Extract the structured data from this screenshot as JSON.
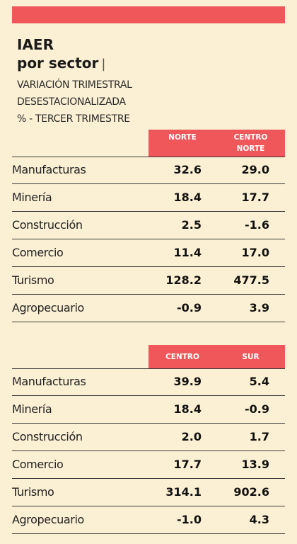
{
  "title": {
    "line1": "IAER",
    "line2": "por sector",
    "separator": "|"
  },
  "subtitle": {
    "line1": "VARIACIÓN TRIMESTRAL",
    "line2": "DESESTACIONALIZADA",
    "line3": "% - TERCER TRIMESTRE"
  },
  "colors": {
    "accent": "#f0575a",
    "background": "#fbf0d4",
    "text": "#1a1a1a"
  },
  "chart_data": [
    {
      "type": "table",
      "columns": [
        "NORTE",
        "CENTRO NORTE"
      ],
      "column_labels": {
        "c1": "NORTE",
        "c2a": "CENTRO",
        "c2b": "NORTE"
      },
      "rows": [
        {
          "label": "Manufacturas",
          "values": [
            "32.6",
            "29.0"
          ]
        },
        {
          "label": "Minería",
          "values": [
            "18.4",
            "17.7"
          ]
        },
        {
          "label": "Construcción",
          "values": [
            "2.5",
            "-1.6"
          ]
        },
        {
          "label": "Comercio",
          "values": [
            "11.4",
            "17.0"
          ]
        },
        {
          "label": "Turismo",
          "values": [
            "128.2",
            "477.5"
          ]
        },
        {
          "label": "Agropecuario",
          "values": [
            "-0.9",
            "3.9"
          ]
        }
      ]
    },
    {
      "type": "table",
      "columns": [
        "CENTRO",
        "SUR"
      ],
      "column_labels": {
        "c1": "CENTRO",
        "c2": "SUR"
      },
      "rows": [
        {
          "label": "Manufacturas",
          "values": [
            "39.9",
            "5.4"
          ]
        },
        {
          "label": "Minería",
          "values": [
            "18.4",
            "-0.9"
          ]
        },
        {
          "label": "Construcción",
          "values": [
            "2.0",
            "1.7"
          ]
        },
        {
          "label": "Comercio",
          "values": [
            "17.7",
            "13.9"
          ]
        },
        {
          "label": "Turismo",
          "values": [
            "314.1",
            "902.6"
          ]
        },
        {
          "label": "Agropecuario",
          "values": [
            "-1.0",
            "4.3"
          ]
        }
      ]
    }
  ]
}
